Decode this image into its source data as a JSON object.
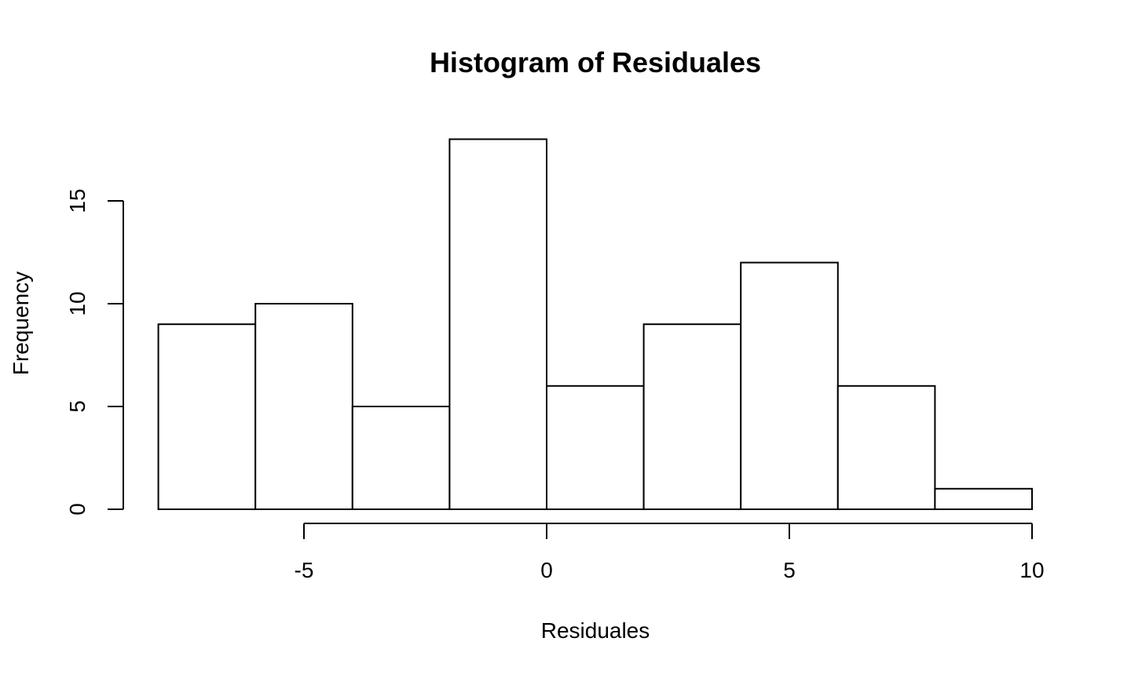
{
  "chart_data": {
    "type": "bar",
    "title": "Histogram of Residuales",
    "xlabel": "Residuales",
    "ylabel": "Frequency",
    "bins": [
      {
        "from": -8,
        "to": -6,
        "count": 9
      },
      {
        "from": -6,
        "to": -4,
        "count": 10
      },
      {
        "from": -4,
        "to": -2,
        "count": 5
      },
      {
        "from": -2,
        "to": 0,
        "count": 18
      },
      {
        "from": 0,
        "to": 2,
        "count": 6
      },
      {
        "from": 2,
        "to": 4,
        "count": 9
      },
      {
        "from": 4,
        "to": 6,
        "count": 12
      },
      {
        "from": 6,
        "to": 8,
        "count": 6
      },
      {
        "from": 8,
        "to": 10,
        "count": 1
      }
    ],
    "xticks": [
      -5,
      0,
      5,
      10
    ],
    "yticks": [
      0,
      5,
      10,
      15
    ],
    "xlim": [
      -8,
      10
    ],
    "ylim": [
      0,
      18
    ],
    "grid": false,
    "legend": "none",
    "colors": {
      "bar_fill": "#ffffff",
      "bar_stroke": "#000000"
    }
  }
}
